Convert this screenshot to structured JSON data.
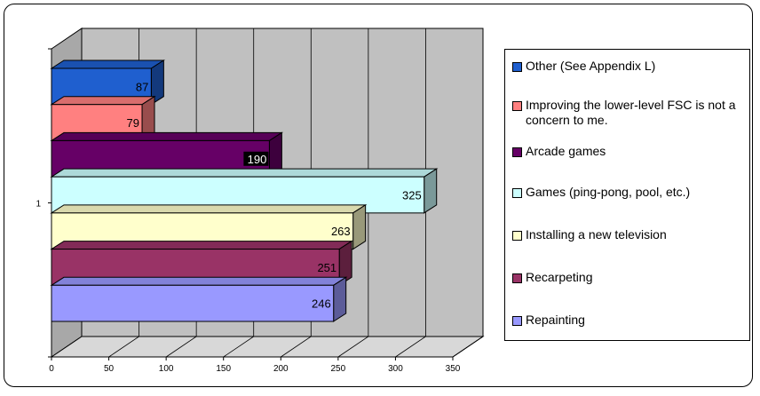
{
  "chart_data": {
    "type": "bar",
    "orientation": "horizontal",
    "three_d": true,
    "categories": [
      "1"
    ],
    "xlim": [
      0,
      350
    ],
    "x_ticks": [
      0,
      50,
      100,
      150,
      200,
      250,
      300,
      350
    ],
    "grid": true,
    "legend_position": "right",
    "series": [
      {
        "name": "Other (See Appendix L)",
        "values": [
          87
        ],
        "color": "#1f5fcf",
        "label_color": "#000000",
        "label_bg": ""
      },
      {
        "name": "Improving the lower-level FSC is not a concern to me.",
        "values": [
          79
        ],
        "color": "#ff8080",
        "label_color": "#000000",
        "label_bg": ""
      },
      {
        "name": "Arcade games",
        "values": [
          190
        ],
        "color": "#660066",
        "label_color": "#ffffff",
        "label_bg": "#000000"
      },
      {
        "name": "Games (ping-pong, pool, etc.)",
        "values": [
          325
        ],
        "color": "#ccffff",
        "label_color": "#000000",
        "label_bg": ""
      },
      {
        "name": "Installing a new television",
        "values": [
          263
        ],
        "color": "#ffffcc",
        "label_color": "#000000",
        "label_bg": ""
      },
      {
        "name": "Recarpeting",
        "values": [
          251
        ],
        "color": "#993366",
        "label_color": "#000000",
        "label_bg": ""
      },
      {
        "name": "Repainting",
        "values": [
          246
        ],
        "color": "#9999ff",
        "label_color": "#000000",
        "label_bg": ""
      }
    ]
  }
}
